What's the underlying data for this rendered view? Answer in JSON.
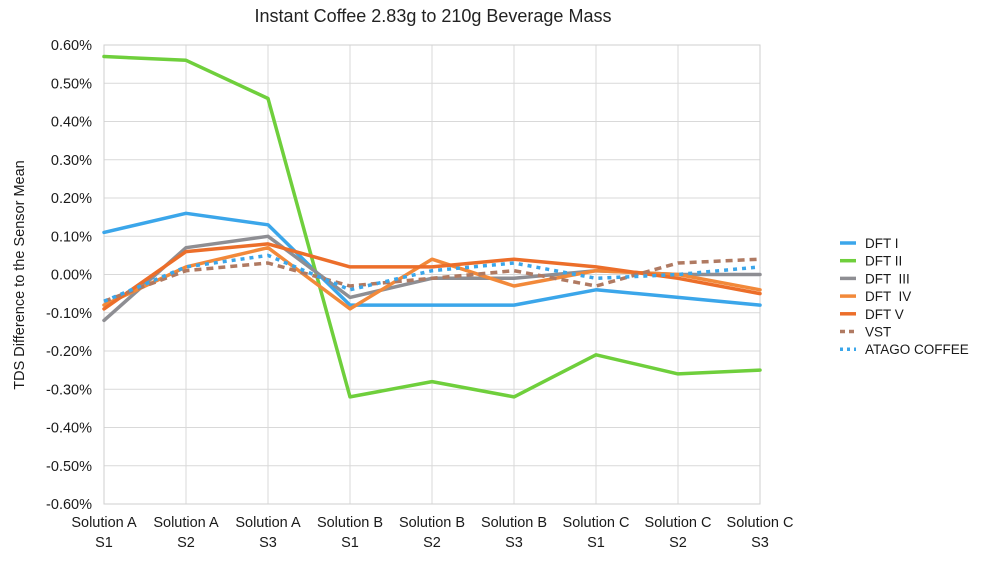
{
  "chart_data": {
    "type": "line",
    "title": "Instant Coffee 2.83g to 210g Beverage Mass",
    "ylabel": "TDS Difference to the Sensor Mean",
    "xlabel": "",
    "ylim": [
      -0.6,
      0.6
    ],
    "yticks": [
      "0.60%",
      "0.50%",
      "0.40%",
      "0.30%",
      "0.20%",
      "0.10%",
      "0.00%",
      "-0.10%",
      "-0.20%",
      "-0.30%",
      "-0.40%",
      "-0.50%",
      "-0.60%"
    ],
    "grid": true,
    "legend_position": "right",
    "categories": [
      [
        "Solution A",
        "S1"
      ],
      [
        "Solution A",
        "S2"
      ],
      [
        "Solution A",
        "S3"
      ],
      [
        "Solution B",
        "S1"
      ],
      [
        "Solution B",
        "S2"
      ],
      [
        "Solution B",
        "S3"
      ],
      [
        "Solution C",
        "S1"
      ],
      [
        "Solution C",
        "S2"
      ],
      [
        "Solution C",
        "S3"
      ]
    ],
    "series": [
      {
        "name": "DFT I",
        "color": "#3ba6ea",
        "style": "solid",
        "values": [
          0.11,
          0.16,
          0.13,
          -0.08,
          -0.08,
          -0.08,
          -0.04,
          -0.06,
          -0.08
        ]
      },
      {
        "name": "DFT II",
        "color": "#6fcf3c",
        "style": "solid",
        "values": [
          0.57,
          0.56,
          0.46,
          -0.32,
          -0.28,
          -0.32,
          -0.21,
          -0.26,
          -0.25
        ]
      },
      {
        "name": "DFT  III",
        "color": "#8e8e93",
        "style": "solid",
        "values": [
          -0.12,
          0.07,
          0.1,
          -0.06,
          -0.01,
          -0.01,
          0.01,
          0.0,
          0.0
        ]
      },
      {
        "name": "DFT  IV",
        "color": "#f2893a",
        "style": "solid",
        "values": [
          -0.08,
          0.02,
          0.07,
          -0.09,
          0.04,
          -0.03,
          0.01,
          0.0,
          -0.04
        ]
      },
      {
        "name": "DFT V",
        "color": "#ec6e2a",
        "style": "solid",
        "values": [
          -0.09,
          0.06,
          0.08,
          0.02,
          0.02,
          0.04,
          0.02,
          -0.01,
          -0.05
        ]
      },
      {
        "name": "VST",
        "color": "#b07a62",
        "style": "dashed",
        "values": [
          -0.07,
          0.01,
          0.03,
          -0.03,
          -0.01,
          0.01,
          -0.03,
          0.03,
          0.04
        ]
      },
      {
        "name": "ATAGO COFFEE",
        "color": "#3ba6ea",
        "style": "dotted",
        "values": [
          -0.07,
          0.02,
          0.05,
          -0.04,
          0.01,
          0.03,
          -0.01,
          0.0,
          0.02
        ]
      }
    ]
  }
}
